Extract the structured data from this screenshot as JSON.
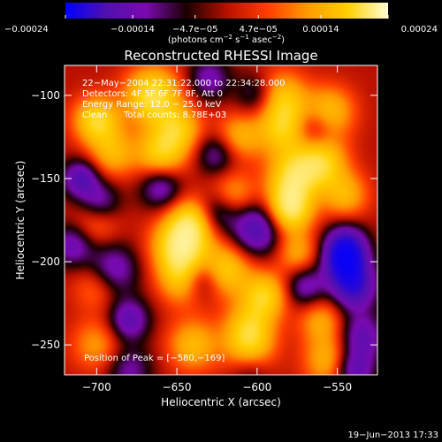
{
  "chart_data": {
    "type": "heatmap",
    "title": "Reconstructed RHESSI Image",
    "xlabel": "Heliocentric X (arcsec)",
    "ylabel": "Heliocentric Y (arcsec)",
    "xlim": [
      -720,
      -525
    ],
    "ylim": [
      -268,
      -82
    ],
    "xticks": [
      -700,
      -650,
      -600,
      -550
    ],
    "xticklabels": [
      "−700",
      "−650",
      "−600",
      "−550"
    ],
    "yticks": [
      -100,
      -150,
      -200,
      -250
    ],
    "yticklabels": [
      "−100",
      "−150",
      "−200",
      "−250"
    ],
    "colorbar": {
      "range": [
        -0.00024,
        0.00024
      ],
      "ticks": [
        -0.00024,
        -0.00014,
        -4.7e-05,
        4.7e-05,
        0.00014,
        0.00024
      ],
      "ticklabels": [
        "−0.00024",
        "−0.00014",
        "−4.7e−05",
        "4.7e−05",
        "0.00014",
        "0.00024"
      ],
      "unit_parts": {
        "pre": "(photons cm",
        "exp1": "−2",
        "mid": " s",
        "exp2": "−1",
        "mid2": " asec",
        "exp3": "−2",
        "post": ")"
      },
      "colormap": [
        "#0000ff",
        "#5010b0",
        "#7a0ab0",
        "#1a0000",
        "#b81000",
        "#ff3c00",
        "#ff9a00",
        "#ffd000",
        "#ffffd8"
      ]
    },
    "annotations": {
      "time": "22−May−2004 22:31:22.000 to 22:34:28.000",
      "detectors": "Detectors: 4F 5F 6F 7F 8F, Att 0",
      "energy": "Energy Range: 12.0 − 25.0 keV",
      "method": "Clean",
      "counts": "Total counts: 8.78E+03",
      "peak": "Position of Peak = [−580,−169]"
    },
    "peak_position": [
      -580,
      -169
    ],
    "grid": false,
    "blobs": [
      {
        "x": -580,
        "y": -169,
        "v": 1.0,
        "s": 10
      },
      {
        "x": -578,
        "y": -150,
        "v": 0.8,
        "s": 11
      },
      {
        "x": -583,
        "y": -120,
        "v": 0.75,
        "s": 12
      },
      {
        "x": -585,
        "y": -100,
        "v": 0.6,
        "s": 11
      },
      {
        "x": -648,
        "y": -190,
        "v": 1.0,
        "s": 12
      },
      {
        "x": -645,
        "y": -210,
        "v": 0.75,
        "s": 11
      },
      {
        "x": -640,
        "y": -175,
        "v": 0.7,
        "s": 10
      },
      {
        "x": -665,
        "y": -100,
        "v": 0.95,
        "s": 12
      },
      {
        "x": -660,
        "y": -135,
        "v": 0.75,
        "s": 11
      },
      {
        "x": -648,
        "y": -120,
        "v": 0.6,
        "s": 10
      },
      {
        "x": -700,
        "y": -115,
        "v": 0.85,
        "s": 10
      },
      {
        "x": -690,
        "y": -135,
        "v": 0.55,
        "s": 10
      },
      {
        "x": -560,
        "y": -140,
        "v": 0.8,
        "s": 11
      },
      {
        "x": -555,
        "y": -110,
        "v": 0.65,
        "s": 11
      },
      {
        "x": -545,
        "y": -160,
        "v": 0.55,
        "s": 10
      },
      {
        "x": -615,
        "y": -160,
        "v": 0.5,
        "s": 10
      },
      {
        "x": -612,
        "y": -125,
        "v": 0.55,
        "s": 10
      },
      {
        "x": -620,
        "y": -205,
        "v": 0.75,
        "s": 11
      },
      {
        "x": -605,
        "y": -240,
        "v": 0.65,
        "s": 11
      },
      {
        "x": -595,
        "y": -220,
        "v": 0.75,
        "s": 10
      },
      {
        "x": -640,
        "y": -250,
        "v": 0.6,
        "s": 11
      },
      {
        "x": -605,
        "y": -255,
        "v": 0.55,
        "s": 11
      },
      {
        "x": -555,
        "y": -260,
        "v": 0.6,
        "s": 11
      },
      {
        "x": -560,
        "y": -235,
        "v": 0.5,
        "s": 10
      },
      {
        "x": -700,
        "y": -175,
        "v": 0.45,
        "s": 10
      },
      {
        "x": -700,
        "y": -215,
        "v": 0.4,
        "s": 10
      },
      {
        "x": -700,
        "y": -250,
        "v": 0.45,
        "s": 11
      },
      {
        "x": -575,
        "y": -195,
        "v": 0.5,
        "s": 9
      },
      {
        "x": -680,
        "y": -235,
        "v": -0.65,
        "s": 9
      },
      {
        "x": -690,
        "y": -205,
        "v": -0.6,
        "s": 11
      },
      {
        "x": -660,
        "y": -155,
        "v": -0.6,
        "s": 9
      },
      {
        "x": -698,
        "y": -165,
        "v": -0.6,
        "s": 9
      },
      {
        "x": -715,
        "y": -190,
        "v": -0.55,
        "s": 9
      },
      {
        "x": -710,
        "y": -150,
        "v": -0.7,
        "s": 8
      },
      {
        "x": -635,
        "y": -210,
        "v": -0.7,
        "s": 9
      },
      {
        "x": -600,
        "y": -180,
        "v": -0.8,
        "s": 11
      },
      {
        "x": -625,
        "y": -170,
        "v": -0.55,
        "s": 9
      },
      {
        "x": -545,
        "y": -200,
        "v": -1.0,
        "s": 9
      },
      {
        "x": -540,
        "y": -215,
        "v": -0.9,
        "s": 10
      },
      {
        "x": -545,
        "y": -190,
        "v": -0.8,
        "s": 9
      },
      {
        "x": -540,
        "y": -265,
        "v": -0.7,
        "s": 9
      },
      {
        "x": -535,
        "y": -245,
        "v": -0.6,
        "s": 10
      },
      {
        "x": -570,
        "y": -215,
        "v": -0.55,
        "s": 9
      },
      {
        "x": -565,
        "y": -120,
        "v": -0.5,
        "s": 9
      },
      {
        "x": -600,
        "y": -100,
        "v": -0.45,
        "s": 9
      },
      {
        "x": -630,
        "y": -90,
        "v": -0.5,
        "s": 9
      },
      {
        "x": -625,
        "y": -135,
        "v": -0.5,
        "s": 9
      },
      {
        "x": -680,
        "y": -265,
        "v": -0.45,
        "s": 10
      },
      {
        "x": -605,
        "y": -265,
        "v": -0.4,
        "s": 9
      }
    ]
  },
  "footer": {
    "timestamp": "19−Jun−2013 17:33"
  }
}
